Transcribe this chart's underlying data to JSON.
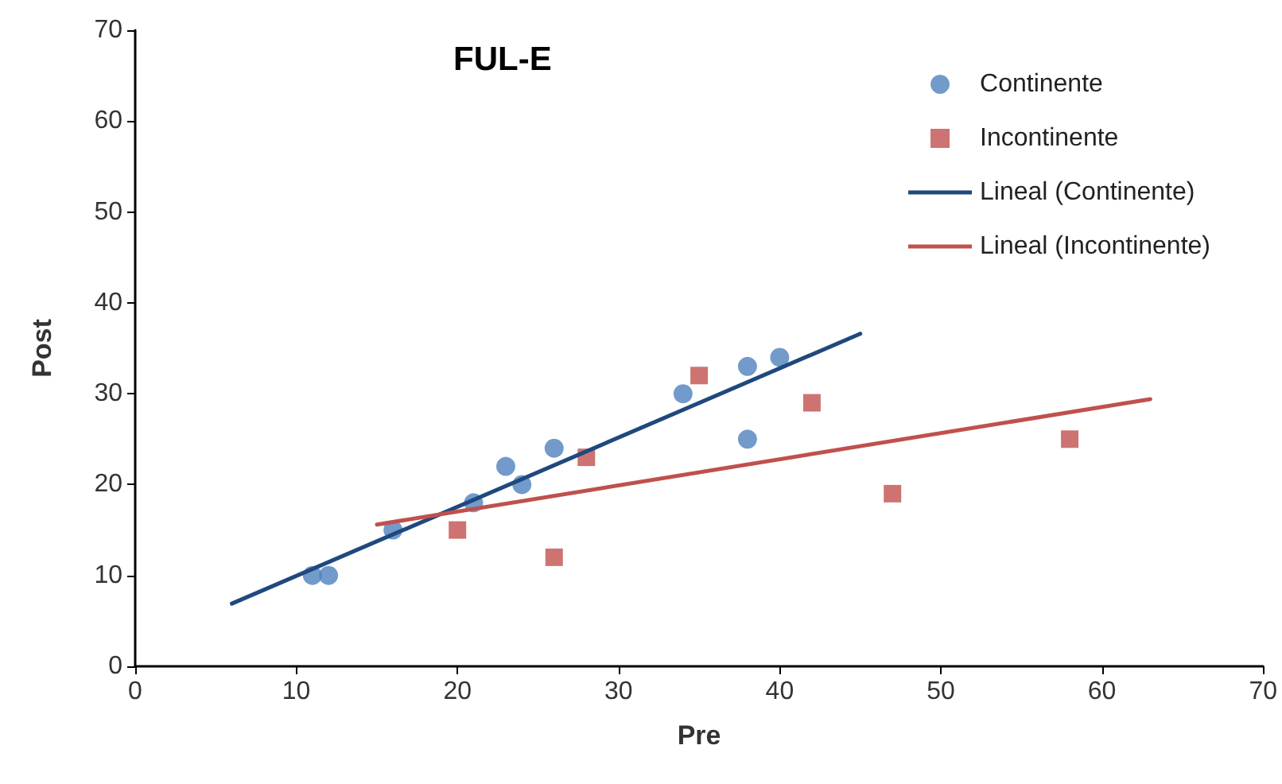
{
  "chart_data": {
    "type": "scatter",
    "title": "FUL-E",
    "xlabel": "Pre",
    "ylabel": "Post",
    "xlim": [
      0,
      70
    ],
    "xticks": [
      0,
      10,
      20,
      30,
      40,
      50,
      60,
      70
    ],
    "ylim": [
      0,
      70
    ],
    "yticks": [
      0,
      10,
      20,
      30,
      40,
      50,
      60,
      70
    ],
    "grid": false,
    "legend": "top right",
    "series": [
      {
        "name": "Continente",
        "marker": "circle",
        "color": "#4f81bd",
        "x": [
          11,
          12,
          16,
          21,
          23,
          24,
          26,
          34,
          38,
          38,
          40
        ],
        "values": [
          10,
          10,
          15,
          18,
          22,
          20,
          24,
          30,
          33,
          25,
          34
        ]
      },
      {
        "name": "Incontinente",
        "marker": "square",
        "color": "#c0504d",
        "x": [
          20,
          26,
          28,
          35,
          42,
          47,
          58
        ],
        "values": [
          15,
          12,
          23,
          32,
          29,
          19,
          25
        ]
      },
      {
        "name": "Lineal (Continente)",
        "type": "line",
        "marker": "none",
        "line_style": "solid",
        "color": "#1f497d",
        "x": [
          6,
          45
        ],
        "values": [
          6.9,
          36.6
        ]
      },
      {
        "name": "Lineal (Incontinente)",
        "type": "line",
        "marker": "none",
        "line_style": "solid",
        "color": "#c0504d",
        "x": [
          15,
          63
        ],
        "values": [
          15.6,
          29.4
        ]
      }
    ]
  }
}
